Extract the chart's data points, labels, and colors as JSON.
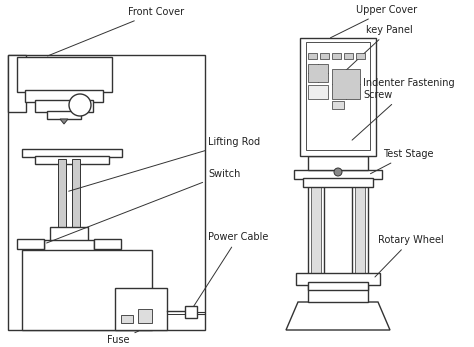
{
  "bg_color": "#ffffff",
  "line_color": "#333333",
  "label_color": "#222222",
  "labels": {
    "front_cover": "Front Cover",
    "lifting_rod": "Lifting Rod",
    "switch": "Switch",
    "power_cable": "Power Cable",
    "fuse": "Fuse",
    "upper_cover": "Upper Cover",
    "key_panel": "key Panel",
    "indenter_fastening": "Indenter Fastening\nScrew",
    "test_stage": "Test Stage",
    "rotary_wheel": "Rotary Wheel"
  },
  "figsize": [
    4.74,
    3.47
  ],
  "dpi": 100
}
